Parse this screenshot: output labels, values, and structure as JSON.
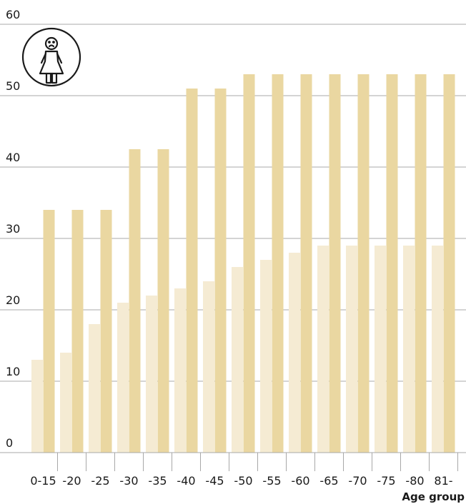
{
  "chart_data": {
    "type": "bar",
    "categories": [
      "0-15",
      "-20",
      "-25",
      "-30",
      "-35",
      "-40",
      "-45",
      "-50",
      "-55",
      "-60",
      "-65",
      "-70",
      "-75",
      "-80",
      "81-"
    ],
    "series": [
      {
        "values": [
          13,
          14,
          18,
          21,
          22,
          23,
          24,
          26,
          27,
          28,
          29,
          29,
          29,
          29,
          29
        ],
        "color": "#f5ebd3"
      },
      {
        "values": [
          34,
          34,
          34,
          42.5,
          42.5,
          51,
          51,
          53,
          53,
          53,
          53,
          53,
          53,
          53,
          53
        ],
        "color": "#ead7a1"
      }
    ],
    "ylim": [
      0,
      60
    ],
    "yticks": [
      0,
      10,
      20,
      30,
      40,
      50,
      60
    ],
    "xlabel": "Age group",
    "ylabel": "",
    "grid": true,
    "icon": "woman-icon",
    "icon_color": "#1a1a1a"
  }
}
